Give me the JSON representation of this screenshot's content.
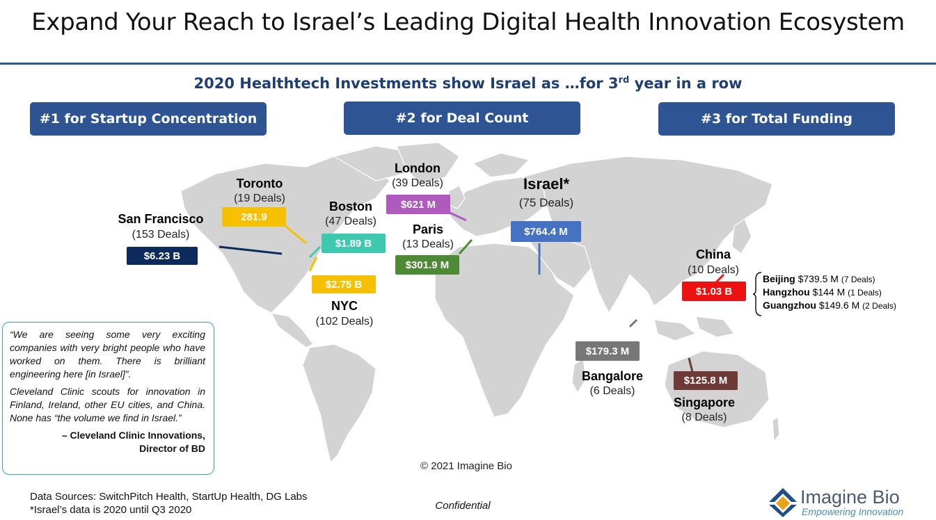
{
  "header": {
    "title": "Expand Your Reach to Israel’s Leading Digital Health Innovation Ecosystem",
    "subtitle_main": "2020 Healthtech Investments show Israel as …for 3",
    "subtitle_sup": "rd",
    "subtitle_end": " year in a row"
  },
  "ranks": [
    {
      "label": "#1 for Startup Concentration"
    },
    {
      "label": "#2 for Deal Count"
    },
    {
      "label": "#3 for Total Funding"
    }
  ],
  "cities": {
    "san_francisco": {
      "name": "San Francisco",
      "deals": "(153 Deals)",
      "amount": "$6.23 B",
      "color": "#0d2a5c"
    },
    "toronto": {
      "name": "Toronto",
      "deals": "(19 Deals)",
      "amount": "281.9",
      "color": "#f5c000"
    },
    "boston": {
      "name": "Boston",
      "deals": "(47 Deals)",
      "amount": "$1.89 B",
      "color": "#3fc8b0"
    },
    "nyc": {
      "name": "NYC",
      "deals": "(102 Deals)",
      "amount": "$2.75 B",
      "color": "#f5c000"
    },
    "london": {
      "name": "London",
      "deals": "(39 Deals)",
      "amount": "$621 M",
      "color": "#b05ac0"
    },
    "paris": {
      "name": "Paris",
      "deals": "(13 Deals)",
      "amount": "$301.9 M",
      "color": "#4e8a35"
    },
    "israel": {
      "name": "Israel*",
      "deals": "(75 Deals)",
      "amount": "$764.4 M",
      "color": "#4672c4"
    },
    "china": {
      "name": "China",
      "deals": "(10 Deals)",
      "amount": "$1.03 B",
      "color": "#ee1111"
    },
    "bangalore": {
      "name": "Bangalore",
      "deals": "(6 Deals)",
      "amount": "$179.3 M",
      "color": "#777777"
    },
    "singapore": {
      "name": "Singapore",
      "deals": "(8 Deals)",
      "amount": "$125.8 M",
      "color": "#6d3a35"
    }
  },
  "china_breakdown": [
    {
      "city": "Beijing",
      "detail": "$739.5 M",
      "deals": "(7 Deals)"
    },
    {
      "city": "Hangzhou",
      "detail": "$144 M",
      "deals": "(1 Deals)"
    },
    {
      "city": "Guangzhou",
      "detail": "$149.6 M",
      "deals": "(2 Deals)"
    }
  ],
  "quote": {
    "p1": "“We are seeing some very exciting companies with very bright people who have worked on them. There is brilliant engineering here [in Israel]”.",
    "p2": "Cleveland Clinic scouts for innovation in Finland, Ireland, other EU cities, and China. None has “the volume we find in Israel.”",
    "author_line1": "– Cleveland Clinic Innovations,",
    "author_line2": "Director of BD"
  },
  "footer": {
    "copyright": "© 2021 Imagine Bio",
    "sources": "Data Sources: SwitchPitch Health, StartUp Health, DG Labs",
    "note": "*Israel’s data is 2020 until Q3 2020",
    "confidential": "Confidential",
    "logo_name": "Imagine Bio",
    "logo_tagline": "Empowering Innovation"
  }
}
